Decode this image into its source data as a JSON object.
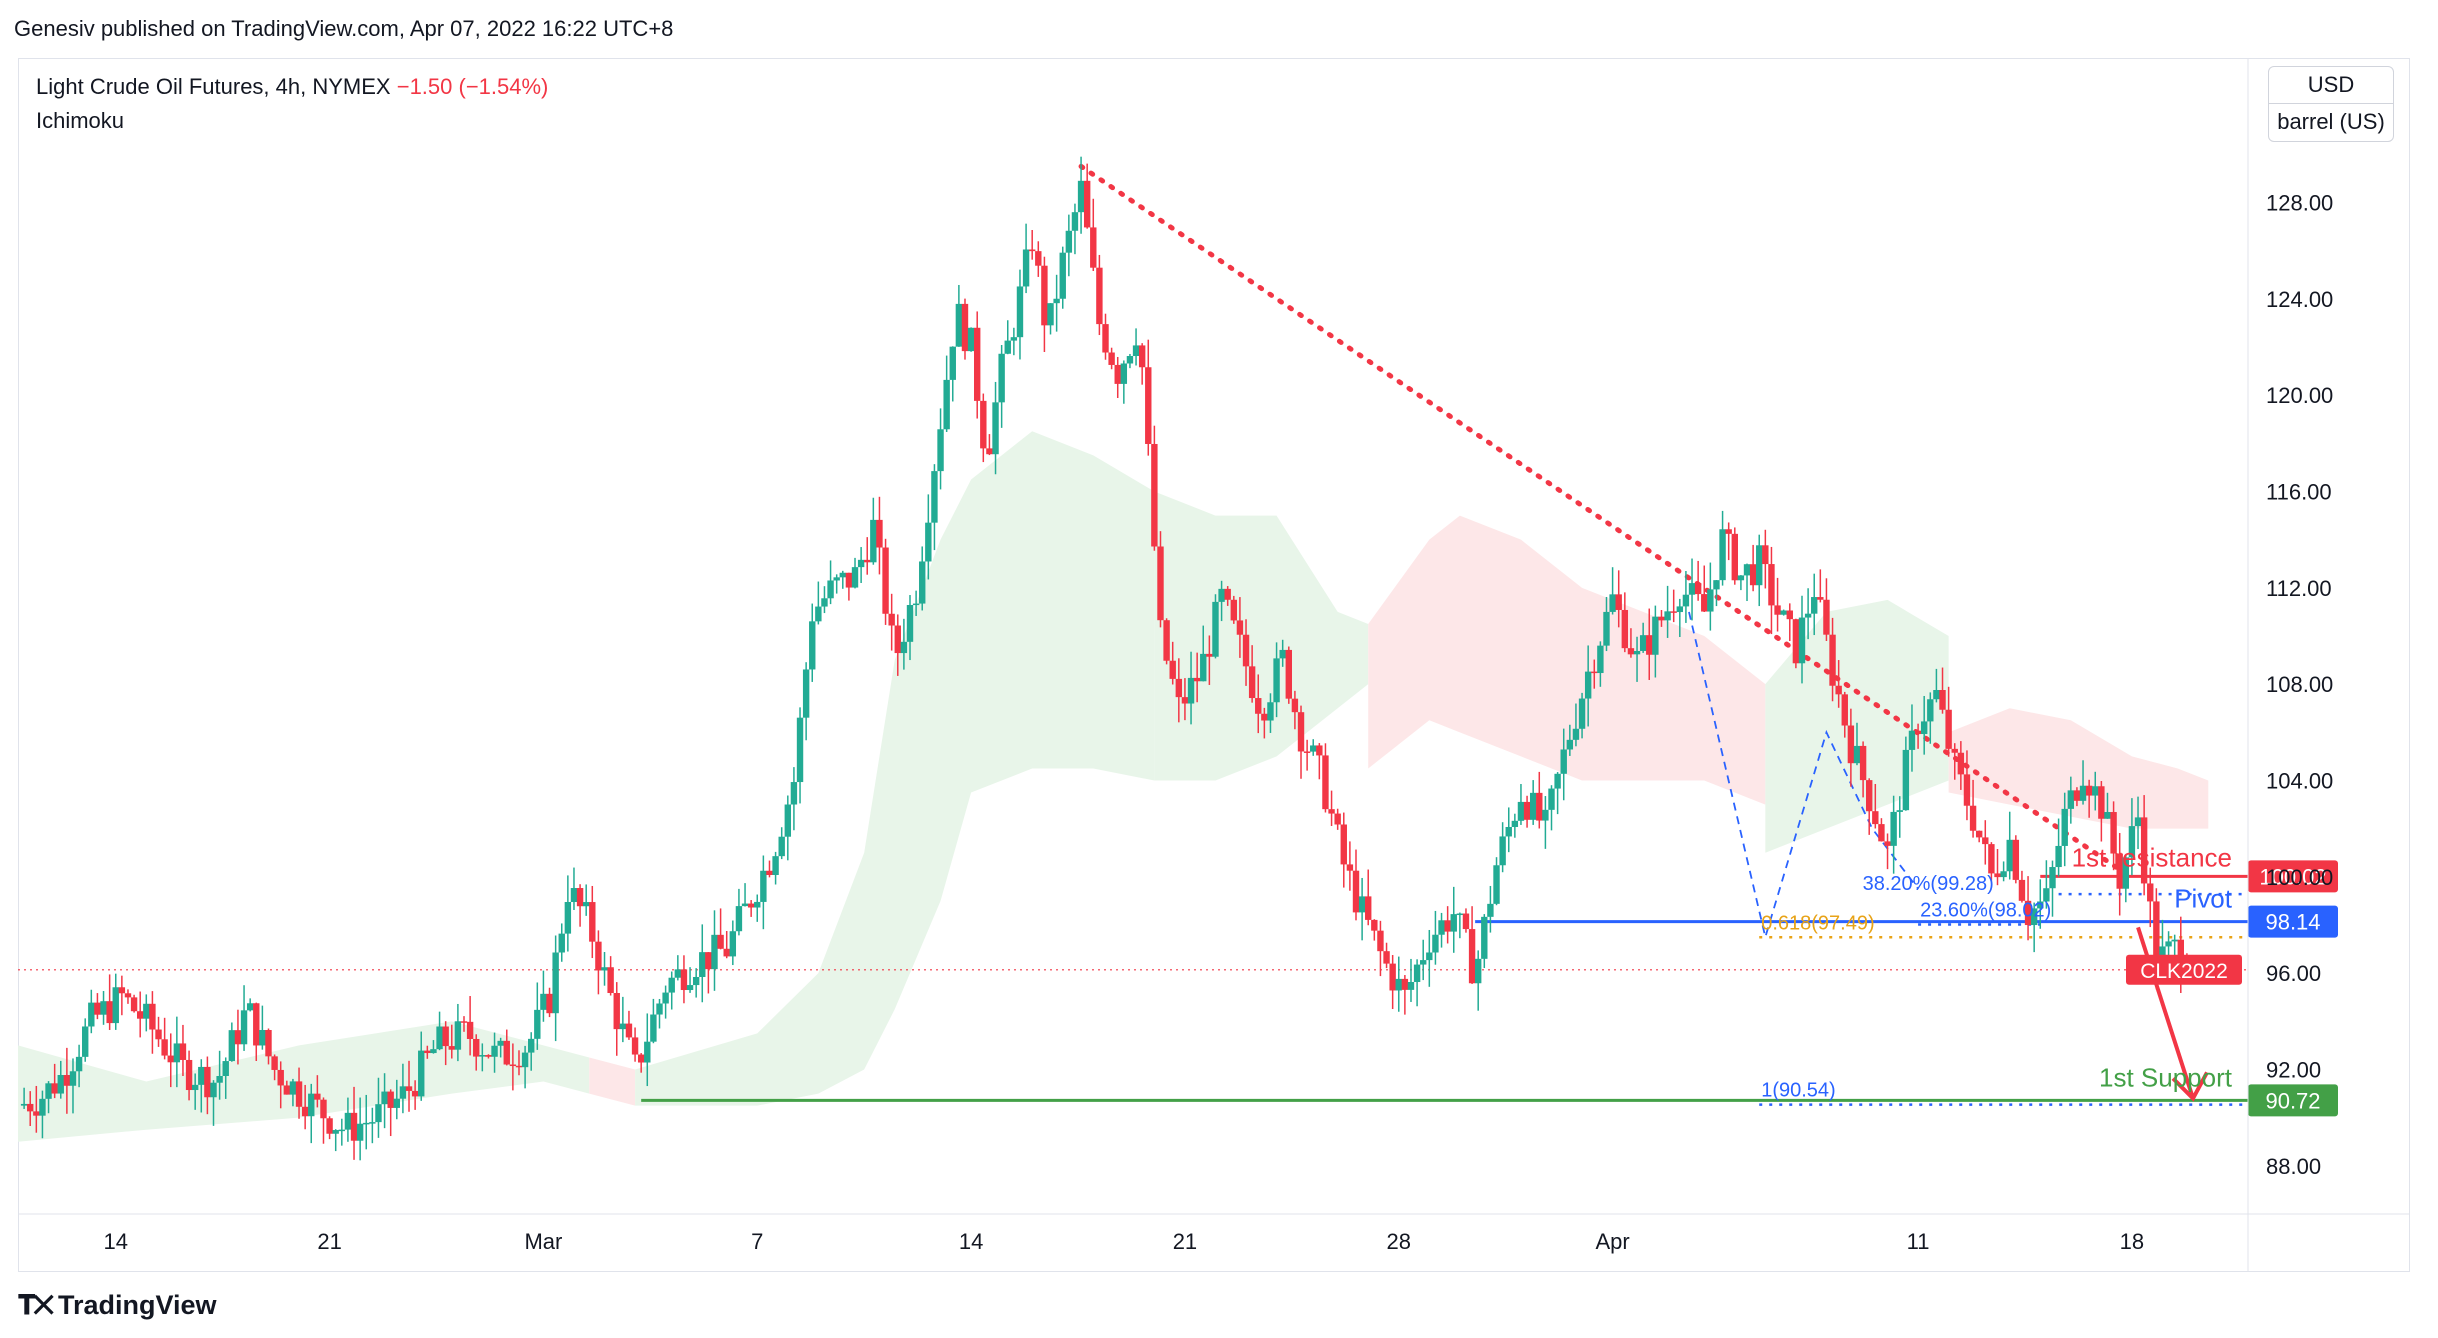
{
  "header": {
    "publish_line": "Genesiv published on TradingView.com, Apr 07, 2022 16:22 UTC+8"
  },
  "legend": {
    "symbol_line": "Light Crude Oil Futures, 4h, NYMEX",
    "change": "−1.50 (−1.54%)",
    "indicator": "Ichimoku"
  },
  "units": {
    "currency": "USD",
    "unit": "barrel (US)"
  },
  "footer": {
    "brand": "TradingView"
  },
  "colors": {
    "up": "#26a69a",
    "up_candle": "#22ab94",
    "down": "#f23645",
    "resistance": "#f23645",
    "pivot": "#2962ff",
    "support": "#43a047",
    "fib": "#e8a317",
    "cloud_bull": "#e8f5e9",
    "cloud_bear": "#fde7e8"
  },
  "chart_data": {
    "type": "candlestick",
    "ylim": [
      86,
      134
    ],
    "y_ticks": [
      88,
      92,
      96,
      100,
      104,
      108,
      112,
      116,
      120,
      124,
      128
    ],
    "y_tick_labels": [
      "88.00",
      "92.00",
      "96.00",
      "100.00",
      "104.00",
      "108.00",
      "112.00",
      "116.00",
      "120.00",
      "124.00",
      "128.00"
    ],
    "x_ticks": [
      {
        "label": "14",
        "day": 14
      },
      {
        "label": "21",
        "day": 21
      },
      {
        "label": "Mar",
        "day": 28
      },
      {
        "label": "7",
        "day": 35
      },
      {
        "label": "14",
        "day": 42
      },
      {
        "label": "21",
        "day": 49
      },
      {
        "label": "28",
        "day": 56
      },
      {
        "label": "Apr",
        "day": 63
      },
      {
        "label": "11",
        "day": 73
      },
      {
        "label": "18",
        "day": 80
      }
    ],
    "x_range_days": [
      10.8,
      83.8
    ],
    "price_close_waypoints": [
      [
        10.8,
        90.5
      ],
      [
        11.5,
        90.8
      ],
      [
        12.3,
        91.8
      ],
      [
        13.2,
        94.0
      ],
      [
        14.2,
        95.0
      ],
      [
        15.0,
        94.0
      ],
      [
        16.2,
        92.0
      ],
      [
        17.3,
        91.5
      ],
      [
        18.3,
        94.5
      ],
      [
        19.2,
        92.0
      ],
      [
        20.5,
        90.5
      ],
      [
        21.5,
        89.5
      ],
      [
        22.5,
        90.0
      ],
      [
        23.5,
        91.0
      ],
      [
        24.5,
        93.0
      ],
      [
        25.5,
        93.5
      ],
      [
        26.5,
        92.5
      ],
      [
        27.5,
        93.0
      ],
      [
        28.2,
        95.0
      ],
      [
        28.8,
        99.5
      ],
      [
        29.5,
        98.0
      ],
      [
        30.2,
        95.0
      ],
      [
        31.0,
        92.0
      ],
      [
        32.0,
        95.5
      ],
      [
        33.0,
        96.5
      ],
      [
        34.0,
        97.0
      ],
      [
        35.5,
        101.0
      ],
      [
        36.2,
        104.0
      ],
      [
        36.8,
        111.0
      ],
      [
        37.5,
        112.0
      ],
      [
        38.2,
        112.5
      ],
      [
        38.8,
        114.5
      ],
      [
        39.5,
        109.0
      ],
      [
        40.2,
        112.0
      ],
      [
        41.0,
        119.0
      ],
      [
        41.5,
        123.5
      ],
      [
        42.0,
        122.0
      ],
      [
        42.5,
        117.5
      ],
      [
        43.0,
        121.0
      ],
      [
        43.5,
        123.5
      ],
      [
        44.0,
        126.5
      ],
      [
        44.5,
        122.5
      ],
      [
        45.0,
        125.5
      ],
      [
        45.6,
        128.5
      ],
      [
        46.2,
        123.0
      ],
      [
        46.8,
        121.0
      ],
      [
        47.5,
        123.0
      ],
      [
        48.2,
        110.0
      ],
      [
        48.8,
        107.0
      ],
      [
        49.5,
        108.5
      ],
      [
        50.2,
        111.5
      ],
      [
        50.8,
        109.5
      ],
      [
        51.5,
        107.0
      ],
      [
        52.2,
        109.0
      ],
      [
        52.8,
        106.0
      ],
      [
        53.5,
        104.0
      ],
      [
        54.2,
        100.5
      ],
      [
        54.8,
        98.5
      ],
      [
        55.5,
        96.5
      ],
      [
        56.2,
        95.0
      ],
      [
        57.0,
        97.5
      ],
      [
        57.8,
        98.5
      ],
      [
        58.5,
        96.0
      ],
      [
        59.2,
        100.5
      ],
      [
        60.0,
        103.5
      ],
      [
        60.8,
        102.0
      ],
      [
        61.5,
        105.5
      ],
      [
        62.2,
        108.5
      ],
      [
        63.0,
        111.5
      ],
      [
        63.8,
        109.0
      ],
      [
        64.5,
        110.5
      ],
      [
        65.2,
        112.0
      ],
      [
        66.0,
        111.0
      ],
      [
        66.6,
        114.0
      ],
      [
        67.2,
        112.5
      ],
      [
        67.8,
        113.0
      ],
      [
        68.4,
        111.0
      ],
      [
        69.0,
        109.5
      ],
      [
        69.6,
        112.0
      ],
      [
        70.2,
        108.5
      ],
      [
        70.8,
        105.5
      ],
      [
        71.5,
        103.0
      ],
      [
        72.0,
        101.0
      ],
      [
        72.5,
        104.0
      ],
      [
        73.0,
        106.5
      ],
      [
        73.6,
        107.5
      ],
      [
        74.2,
        104.5
      ],
      [
        74.8,
        102.5
      ],
      [
        75.4,
        100.0
      ],
      [
        76.0,
        101.5
      ],
      [
        76.6,
        98.5
      ],
      [
        77.2,
        99.0
      ],
      [
        77.8,
        102.5
      ],
      [
        78.4,
        104.5
      ],
      [
        79.0,
        103.0
      ],
      [
        79.6,
        100.0
      ],
      [
        80.2,
        102.5
      ],
      [
        80.8,
        96.5
      ],
      [
        81.4,
        97.0
      ],
      [
        82.0,
        96.5
      ]
    ],
    "cloud_segments": [
      {
        "color": "bull",
        "x": [
          10.8,
          15,
          20,
          25,
          28,
          29.5
        ],
        "upper": [
          93,
          91.5,
          93,
          94,
          93,
          92.5
        ],
        "lower": [
          89,
          89.5,
          90,
          91,
          91.5,
          91
        ]
      },
      {
        "color": "bear",
        "x": [
          29.5,
          31
        ],
        "upper": [
          92.5,
          92
        ],
        "lower": [
          91,
          90.5
        ]
      },
      {
        "color": "bull",
        "x": [
          31,
          35,
          37,
          38.5,
          39.5,
          41,
          42,
          44,
          46,
          48
        ],
        "upper": [
          92,
          93.5,
          96,
          101,
          109,
          114,
          116.5,
          118.5,
          117.5,
          116
        ],
        "lower": [
          90.5,
          90.5,
          91,
          92,
          94.5,
          99,
          103.5,
          104.5,
          104.5,
          104
        ]
      },
      {
        "color": "bull",
        "x": [
          48,
          50,
          52,
          53,
          54,
          55
        ],
        "upper": [
          116,
          115,
          115,
          113,
          111,
          110.5
        ],
        "lower": [
          104,
          104,
          105,
          106,
          107,
          108
        ]
      },
      {
        "color": "bear",
        "x": [
          55,
          57,
          58,
          60,
          62,
          64,
          66,
          68
        ],
        "upper": [
          110.5,
          114,
          115,
          114,
          112,
          111,
          110,
          108
        ]
      },
      {
        "color": "bull",
        "x": [
          68,
          70,
          72,
          74
        ],
        "upper": [
          108,
          111,
          111.5,
          110
        ],
        "lower": [
          101,
          102,
          103,
          104
        ]
      },
      {
        "color": "bear",
        "x": [
          74,
          76,
          78,
          80,
          81.5,
          82.5
        ],
        "upper": [
          106,
          107,
          106.5,
          105,
          104.5,
          104
        ],
        "lower": [
          103.5,
          103,
          102.5,
          102,
          102,
          102
        ]
      }
    ],
    "lines": {
      "trendline": {
        "from": [
          45.6,
          129.5
        ],
        "to": [
          79.6,
          100.3
        ]
      },
      "resistance": {
        "value": 100.02,
        "from_day": 77.0,
        "label": "1st resistance",
        "price_label": "100.02"
      },
      "pivot": {
        "value": 98.14,
        "from_day": 58.5,
        "label": "Pivot",
        "price_label": "98.14"
      },
      "support": {
        "value": 90.72,
        "from_day": 31.2,
        "label": "1st Support",
        "price_label": "90.72"
      },
      "last_price": {
        "value": 96.14,
        "label": "CLK2022"
      },
      "fib_extension": {
        "value": 97.49,
        "from_day": 67.8,
        "label": "0.618(97.49)"
      },
      "fib_target": {
        "value": 90.54,
        "from_day": 67.8,
        "label": "1(90.54)"
      },
      "fib_382": {
        "value": 99.28,
        "from_day": 77.6,
        "label": "38.20%(99.28)"
      },
      "fib_236": {
        "value": 98.02,
        "from_day": 73.0,
        "label": "23.60%(98.02)"
      },
      "projection_path": [
        [
          65.5,
          111.0
        ],
        [
          68.0,
          97.5
        ],
        [
          70.0,
          106.0
        ],
        [
          71.5,
          102.0
        ],
        [
          73.0,
          99.5
        ]
      ],
      "arrow": {
        "from": [
          80.2,
          97.9
        ],
        "to": [
          82.0,
          90.8
        ]
      }
    }
  }
}
